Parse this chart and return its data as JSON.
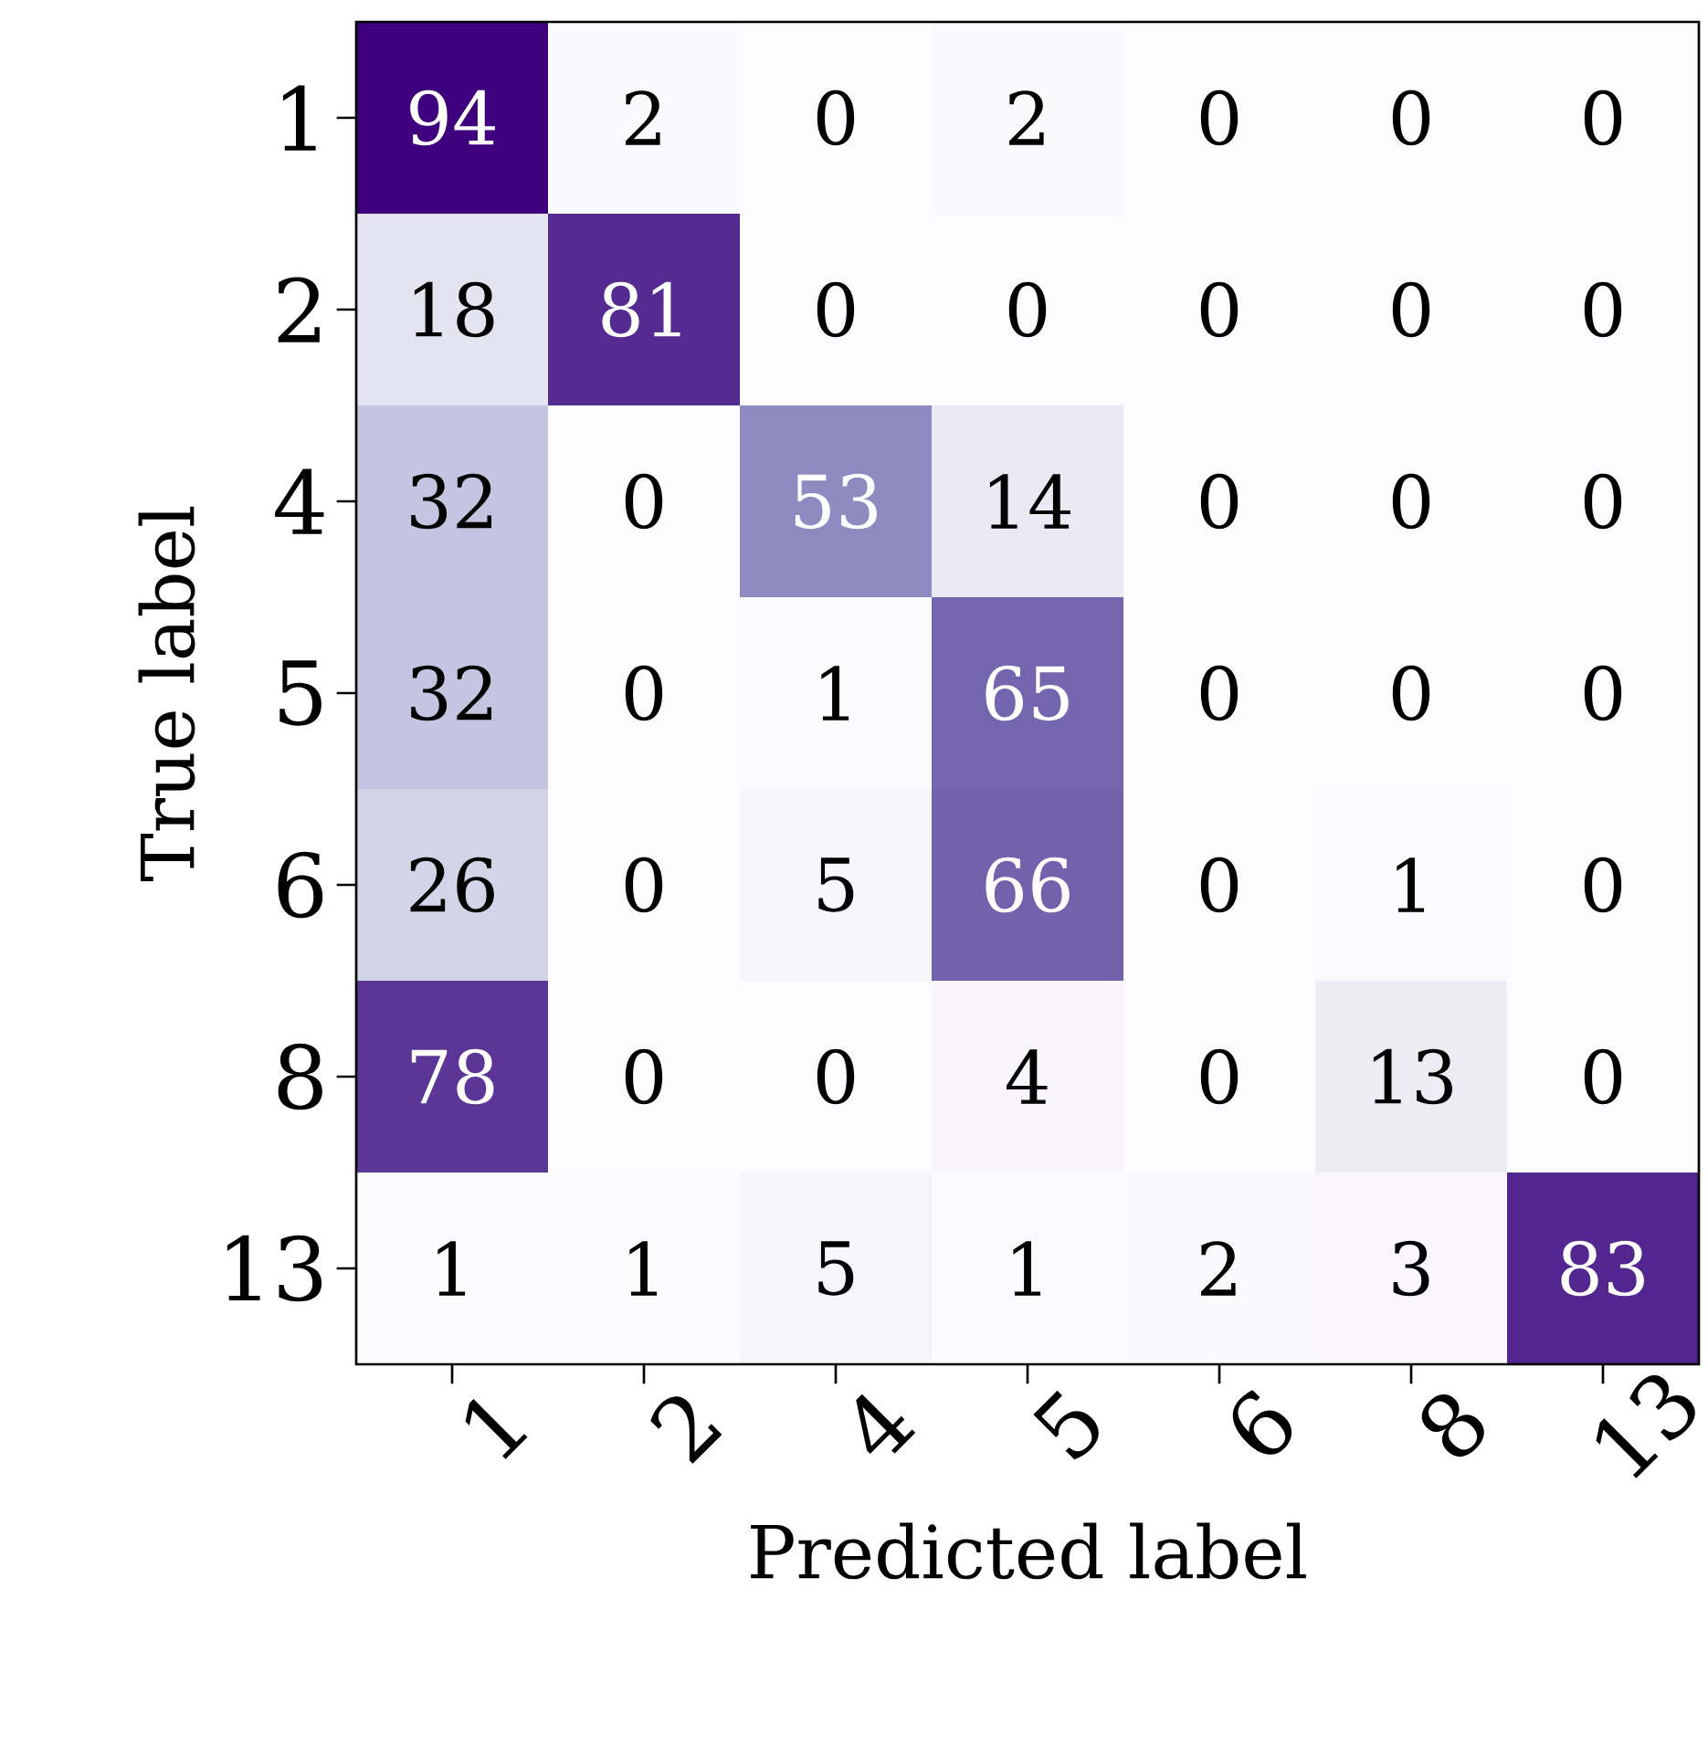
{
  "chart_data": {
    "type": "heatmap",
    "xlabel": "Predicted label",
    "ylabel": "True label",
    "categories": [
      "1",
      "2",
      "4",
      "5",
      "6",
      "8",
      "13"
    ],
    "y_categories": [
      "1",
      "2",
      "4",
      "5",
      "6",
      "8",
      "13"
    ],
    "cells": [
      [
        94,
        2,
        0,
        2,
        0,
        0,
        0
      ],
      [
        18,
        81,
        0,
        0,
        0,
        0,
        0
      ],
      [
        32,
        0,
        53,
        14,
        0,
        0,
        0
      ],
      [
        32,
        0,
        1,
        65,
        0,
        0,
        0
      ],
      [
        26,
        0,
        5,
        66,
        0,
        1,
        0
      ],
      [
        78,
        0,
        0,
        4,
        0,
        13,
        0
      ],
      [
        1,
        1,
        5,
        1,
        2,
        3,
        83
      ]
    ],
    "data_labels": true
  }
}
